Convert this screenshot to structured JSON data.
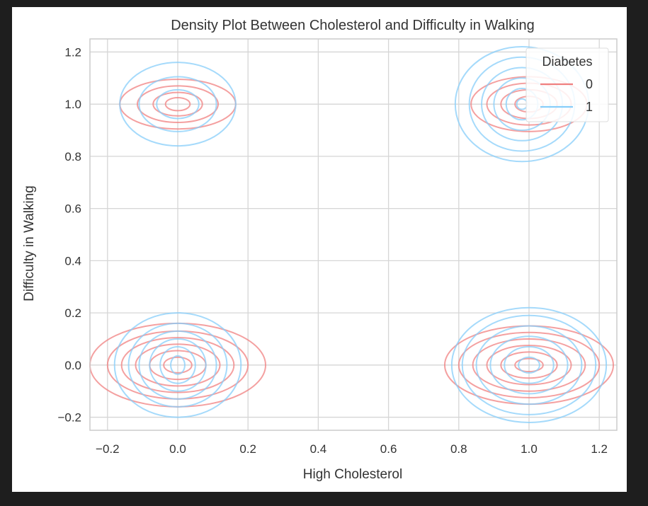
{
  "chart_data": {
    "type": "kde_contour",
    "title": "Density Plot Between Cholesterol and Difficulty in Walking",
    "xlabel": "High Cholesterol",
    "ylabel": "Difficulty in Walking",
    "xlim": [
      -0.25,
      1.25
    ],
    "ylim": [
      -0.25,
      1.25
    ],
    "xticks": [
      -0.2,
      0.0,
      0.2,
      0.4,
      0.6,
      0.8,
      1.0,
      1.2
    ],
    "xtick_labels": [
      "−0.2",
      "0.0",
      "0.2",
      "0.4",
      "0.6",
      "0.8",
      "1.0",
      "1.2"
    ],
    "yticks": [
      -0.2,
      0.0,
      0.2,
      0.4,
      0.6,
      0.8,
      1.0,
      1.2
    ],
    "ytick_labels": [
      "−0.2",
      "0.0",
      "0.2",
      "0.4",
      "0.6",
      "0.8",
      "1.0",
      "1.2"
    ],
    "grid": true,
    "legend": {
      "title": "Diabetes",
      "placement": "top-right"
    },
    "series": [
      {
        "name": "0",
        "color": "#f08080",
        "clusters": [
          {
            "cx": 0.0,
            "cy": 1.0,
            "rx": [
              0.035,
              0.07,
              0.115,
              0.165
            ],
            "ry": [
              0.025,
              0.045,
              0.07,
              0.095
            ]
          },
          {
            "cx": 0.0,
            "cy": 0.0,
            "rx": [
              0.04,
              0.08,
              0.12,
              0.16,
              0.2,
              0.25
            ],
            "ry": [
              0.03,
              0.055,
              0.08,
              0.105,
              0.13,
              0.16
            ]
          },
          {
            "cx": 1.0,
            "cy": 1.0,
            "rx": [
              0.04,
              0.08,
              0.12,
              0.165
            ],
            "ry": [
              0.03,
              0.055,
              0.08,
              0.105
            ]
          },
          {
            "cx": 1.0,
            "cy": 0.0,
            "rx": [
              0.04,
              0.08,
              0.12,
              0.16,
              0.2,
              0.24
            ],
            "ry": [
              0.025,
              0.05,
              0.075,
              0.1,
              0.125,
              0.15
            ]
          }
        ]
      },
      {
        "name": "1",
        "color": "#87cefa",
        "clusters": [
          {
            "cx": 0.0,
            "cy": 1.0,
            "rx": [
              0.06,
              0.11,
              0.165
            ],
            "ry": [
              0.055,
              0.105,
              0.16
            ]
          },
          {
            "cx": 0.0,
            "cy": 0.0,
            "rx": [
              0.02,
              0.05,
              0.08,
              0.11,
              0.14,
              0.18
            ],
            "ry": [
              0.035,
              0.07,
              0.1,
              0.13,
              0.16,
              0.2
            ]
          },
          {
            "cx": 0.98,
            "cy": 1.0,
            "rx": [
              0.015,
              0.045,
              0.08,
              0.115,
              0.15,
              0.19
            ],
            "ry": [
              0.02,
              0.06,
              0.1,
              0.14,
              0.18,
              0.22
            ]
          },
          {
            "cx": 1.0,
            "cy": 0.0,
            "rx": [
              0.03,
              0.07,
              0.11,
              0.15,
              0.19,
              0.22
            ],
            "ry": [
              0.03,
              0.07,
              0.11,
              0.15,
              0.19,
              0.22
            ]
          }
        ]
      }
    ]
  }
}
